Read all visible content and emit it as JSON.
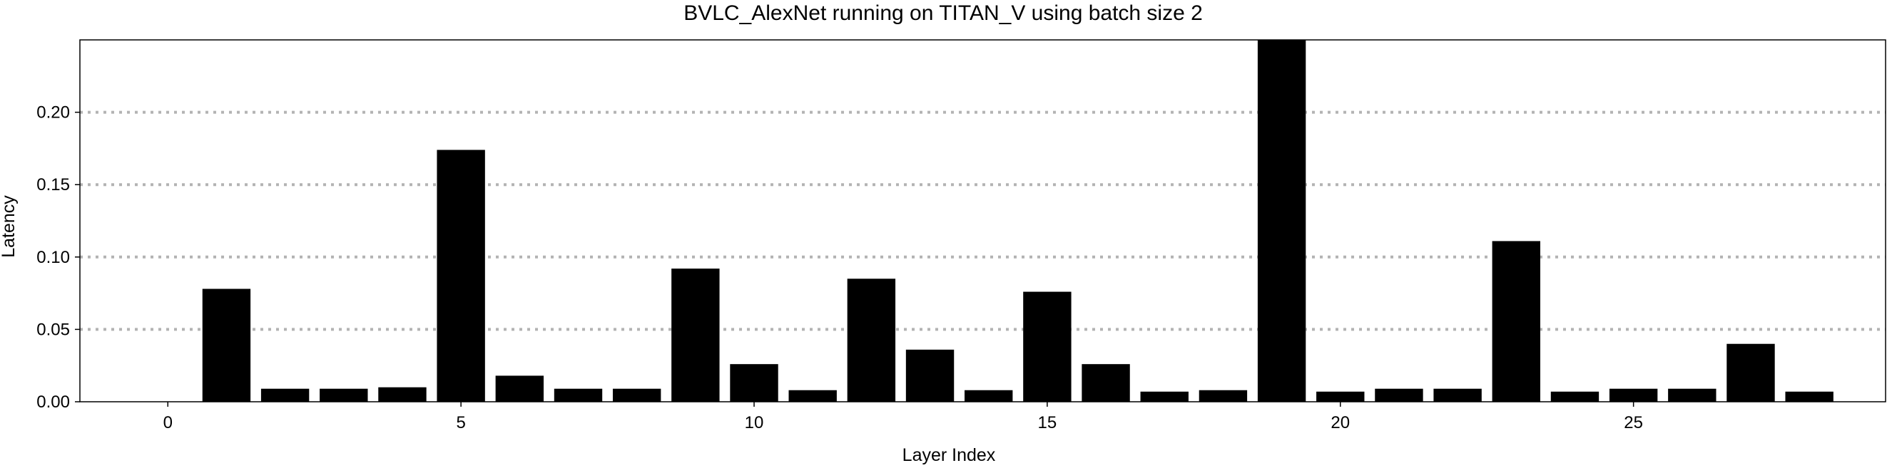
{
  "chart_data": {
    "type": "bar",
    "title": "BVLC_AlexNet running on TITAN_V using batch size 2",
    "xlabel": "Layer Index",
    "ylabel": "Latency",
    "x": [
      1,
      2,
      3,
      4,
      5,
      6,
      7,
      8,
      9,
      10,
      11,
      12,
      13,
      14,
      15,
      16,
      17,
      18,
      19,
      20,
      21,
      22,
      23,
      24,
      25,
      26,
      27,
      28
    ],
    "values": [
      0.078,
      0.009,
      0.009,
      0.01,
      0.174,
      0.018,
      0.009,
      0.009,
      0.092,
      0.026,
      0.008,
      0.085,
      0.036,
      0.008,
      0.076,
      0.026,
      0.007,
      0.008,
      0.25,
      0.007,
      0.009,
      0.009,
      0.111,
      0.007,
      0.009,
      0.009,
      0.04,
      0.007
    ],
    "xlim": [
      -1.5,
      29.3
    ],
    "ylim": [
      0,
      0.25
    ],
    "x_ticks": [
      0,
      5,
      10,
      15,
      20,
      25
    ],
    "x_tick_labels": [
      "0",
      "5",
      "10",
      "15",
      "20",
      "25"
    ],
    "y_ticks": [
      0.0,
      0.05,
      0.1,
      0.15,
      0.2
    ],
    "y_tick_labels": [
      "0.00",
      "0.05",
      "0.10",
      "0.15",
      "0.20"
    ],
    "grid": "horizontal-dotted",
    "colors": {
      "bar": "#000000",
      "grid": "#b3b3b3",
      "frame": "#000000"
    }
  }
}
